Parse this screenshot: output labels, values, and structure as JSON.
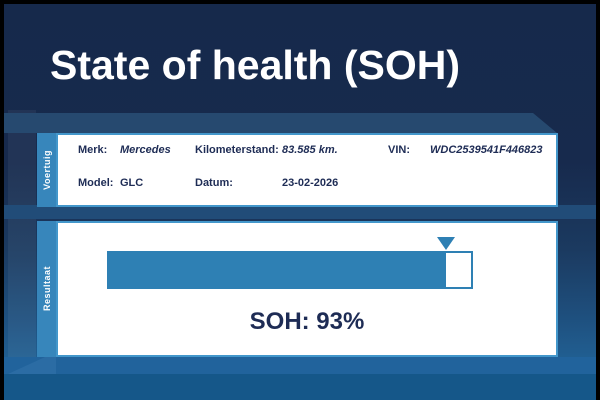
{
  "title": "State of health (SOH)",
  "vehicle": {
    "tab_label": "Voertuig",
    "merk_label": "Merk:",
    "merk_value": "Mercedes",
    "model_label": "Model:",
    "model_value": "GLC",
    "km_label": "Kilometerstand:",
    "km_value": "83.585 km.",
    "datum_label": "Datum:",
    "datum_value": "23-02-2026",
    "vin_label": "VIN:",
    "vin_value": "WDC2539541F446823"
  },
  "result": {
    "tab_label": "Resultaat",
    "soh_text": "SOH: 93%",
    "soh_percent": 93
  },
  "colors": {
    "background_navy": "#17294B",
    "background_bottom_blue": "#1D6095",
    "accent_blue": "#2E80B4",
    "tab_blue": "#3786BB",
    "panel_border_blue": "#4397CB",
    "text_navy": "#1E2C55",
    "title_white": "#FFFFFF"
  }
}
